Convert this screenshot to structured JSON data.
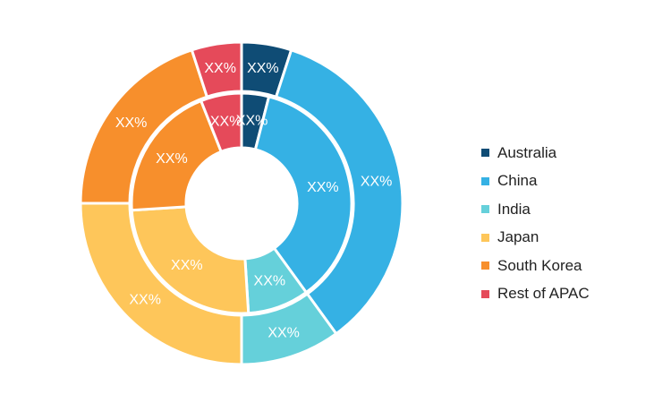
{
  "chart_data": {
    "type": "donut",
    "categories": [
      "Australia",
      "China",
      "India",
      "Japan",
      "South Korea",
      "Rest of APAC"
    ],
    "colors": [
      "#0f4c75",
      "#35b1e4",
      "#65d0da",
      "#fec65a",
      "#f78f2c",
      "#e54a5a"
    ],
    "series": [
      {
        "ring": "inner",
        "values": [
          4,
          36,
          9,
          25,
          20,
          6
        ],
        "labels": [
          "XX%",
          "XX%",
          "XX%",
          "XX%",
          "XX%",
          "XX%"
        ]
      },
      {
        "ring": "outer",
        "values": [
          5,
          35,
          10,
          25,
          20,
          5
        ],
        "labels": [
          "XX%",
          "XX%",
          "XX%",
          "XX%",
          "XX%",
          "XX%"
        ]
      }
    ],
    "legend_position": "right"
  }
}
